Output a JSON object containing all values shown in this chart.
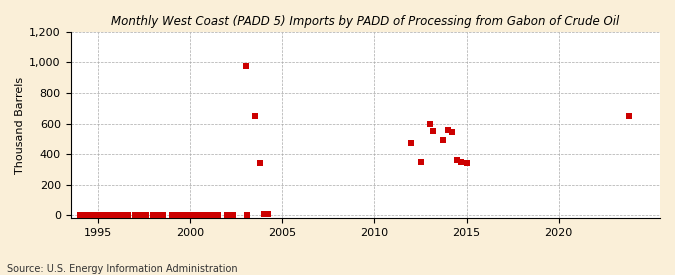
{
  "title": "Monthly West Coast (PADD 5) Imports by PADD of Processing from Gabon of Crude Oil",
  "ylabel": "Thousand Barrels",
  "source": "Source: U.S. Energy Information Administration",
  "background_color": "#faefd8",
  "plot_background_color": "#ffffff",
  "marker_color": "#cc0000",
  "xlim": [
    1993.5,
    2025.5
  ],
  "ylim": [
    -20,
    1200
  ],
  "yticks": [
    0,
    200,
    400,
    600,
    800,
    1000,
    1200
  ],
  "xticks": [
    1995,
    2000,
    2005,
    2010,
    2015,
    2020
  ],
  "data_x": [
    1994.0,
    1994.1,
    1994.2,
    1994.4,
    1994.5,
    1994.7,
    1994.9,
    1995.0,
    1995.2,
    1995.4,
    1995.6,
    1995.8,
    1996.0,
    1996.2,
    1996.4,
    1996.6,
    1997.0,
    1997.3,
    1997.6,
    1998.0,
    1998.2,
    1998.5,
    1999.0,
    1999.2,
    1999.5,
    1999.8,
    2000.0,
    2000.2,
    2000.5,
    2000.7,
    2001.0,
    2001.2,
    2001.5,
    2002.0,
    2002.3,
    2003.0,
    2003.1,
    2003.5,
    2003.8,
    2004.0,
    2004.2,
    2012.0,
    2012.5,
    2013.0,
    2013.2,
    2013.7,
    2014.0,
    2014.2,
    2014.5,
    2014.7,
    2015.0,
    2023.8
  ],
  "data_y": [
    2,
    3,
    2,
    4,
    3,
    2,
    3,
    2,
    3,
    2,
    4,
    3,
    2,
    3,
    4,
    2,
    3,
    2,
    3,
    2,
    4,
    3,
    2,
    3,
    2,
    4,
    3,
    2,
    4,
    3,
    2,
    3,
    2,
    3,
    2,
    980,
    2,
    650,
    340,
    5,
    5,
    470,
    350,
    600,
    550,
    490,
    560,
    545,
    360,
    350,
    340,
    650
  ]
}
